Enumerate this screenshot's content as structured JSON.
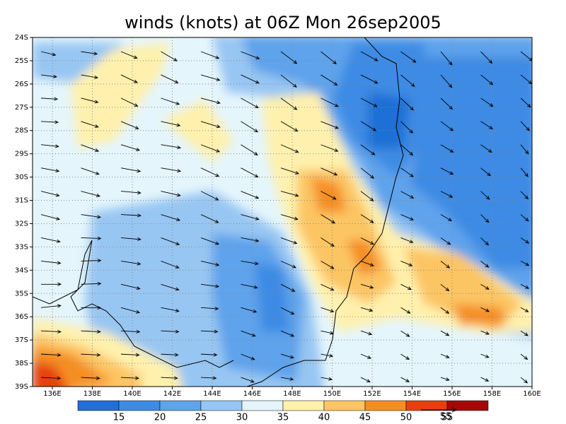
{
  "title": "winds (knots) at 06Z Mon 26sep2005",
  "lat_labels": [
    "24S",
    "25S",
    "26S",
    "27S",
    "28S",
    "29S",
    "30S",
    "31S",
    "32S",
    "33S",
    "34S",
    "35S",
    "36S",
    "37S",
    "38S",
    "39S"
  ],
  "lon_labels": [
    "136E",
    "138E",
    "140E",
    "142E",
    "144E",
    "146E",
    "148E",
    "150E",
    "152E",
    "154E",
    "156E",
    "158E",
    "160E"
  ],
  "colorbar": {
    "levels": [
      15,
      20,
      25,
      30,
      35,
      40,
      45,
      50,
      55
    ],
    "colors": [
      "#1f6fd6",
      "#3d8be4",
      "#5ea3ec",
      "#98c6f2",
      "#e4f5fc",
      "#fff1ad",
      "#fcc564",
      "#f58e22",
      "#e6400e",
      "#a50808"
    ]
  },
  "vector_reference": "55"
}
